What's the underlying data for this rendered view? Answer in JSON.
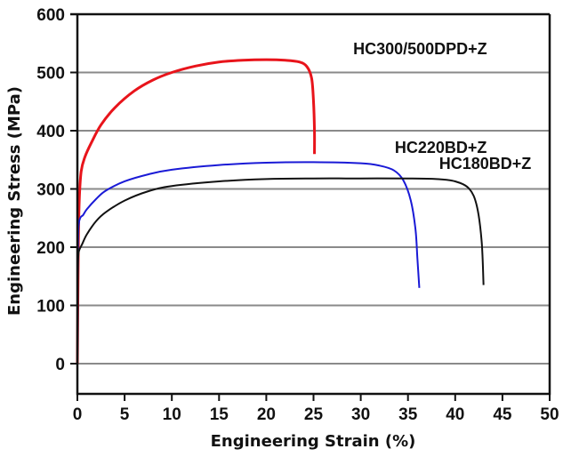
{
  "chart_data": {
    "type": "line",
    "title": "",
    "xlabel": "Engineering Strain (%)",
    "ylabel": "Engineering Stress (MPa)",
    "xlim": [
      0,
      50
    ],
    "ylim": [
      -52,
      600
    ],
    "xticks": [
      0,
      5,
      10,
      15,
      20,
      25,
      30,
      35,
      40,
      45,
      50
    ],
    "yticks": [
      0,
      100,
      200,
      300,
      400,
      500,
      600
    ],
    "grid": "horizontal",
    "legend": "inline labels",
    "series": [
      {
        "name": "HC300/500DPD+Z",
        "color": "#e8141b",
        "label_pos": [
          29.2,
          531
        ],
        "x": [
          0,
          0.1,
          0.2,
          0.4,
          0.8,
          1.5,
          2.5,
          4,
          6,
          8,
          10,
          12.5,
          15,
          17.5,
          20,
          22,
          23.5,
          24.3,
          24.8,
          25.0,
          25.1,
          25.1
        ],
        "y": [
          0,
          200,
          280,
          330,
          355,
          380,
          410,
          440,
          468,
          487,
          500,
          511,
          518,
          521,
          522,
          521,
          518,
          510,
          490,
          450,
          400,
          360
        ]
      },
      {
        "name": "HC220BD+Z",
        "color": "#1a1ad6",
        "label_pos": [
          33.6,
          362
        ],
        "x": [
          0,
          0.05,
          0.1,
          0.3,
          0.6,
          1,
          2,
          3,
          5,
          7.5,
          10,
          15,
          20,
          25,
          30,
          32,
          33.5,
          34.5,
          35.3,
          35.8,
          36.0,
          36.2
        ],
        "y": [
          0,
          150,
          230,
          250,
          255,
          265,
          283,
          297,
          313,
          325,
          333,
          341,
          345,
          346,
          344,
          340,
          332,
          315,
          280,
          230,
          180,
          130
        ]
      },
      {
        "name": "HC180BD+Z",
        "color": "#111111",
        "label_pos": [
          38.3,
          334
        ],
        "x": [
          0,
          0.05,
          0.1,
          0.2,
          0.5,
          1,
          2,
          3,
          5,
          7.5,
          10,
          15,
          20,
          25,
          30,
          35,
          38,
          40,
          41.5,
          42.3,
          42.8,
          43.0
        ],
        "y": [
          0,
          150,
          185,
          195,
          205,
          222,
          245,
          260,
          280,
          296,
          305,
          313,
          317,
          318,
          318,
          318,
          317,
          313,
          300,
          270,
          210,
          135
        ]
      }
    ]
  }
}
